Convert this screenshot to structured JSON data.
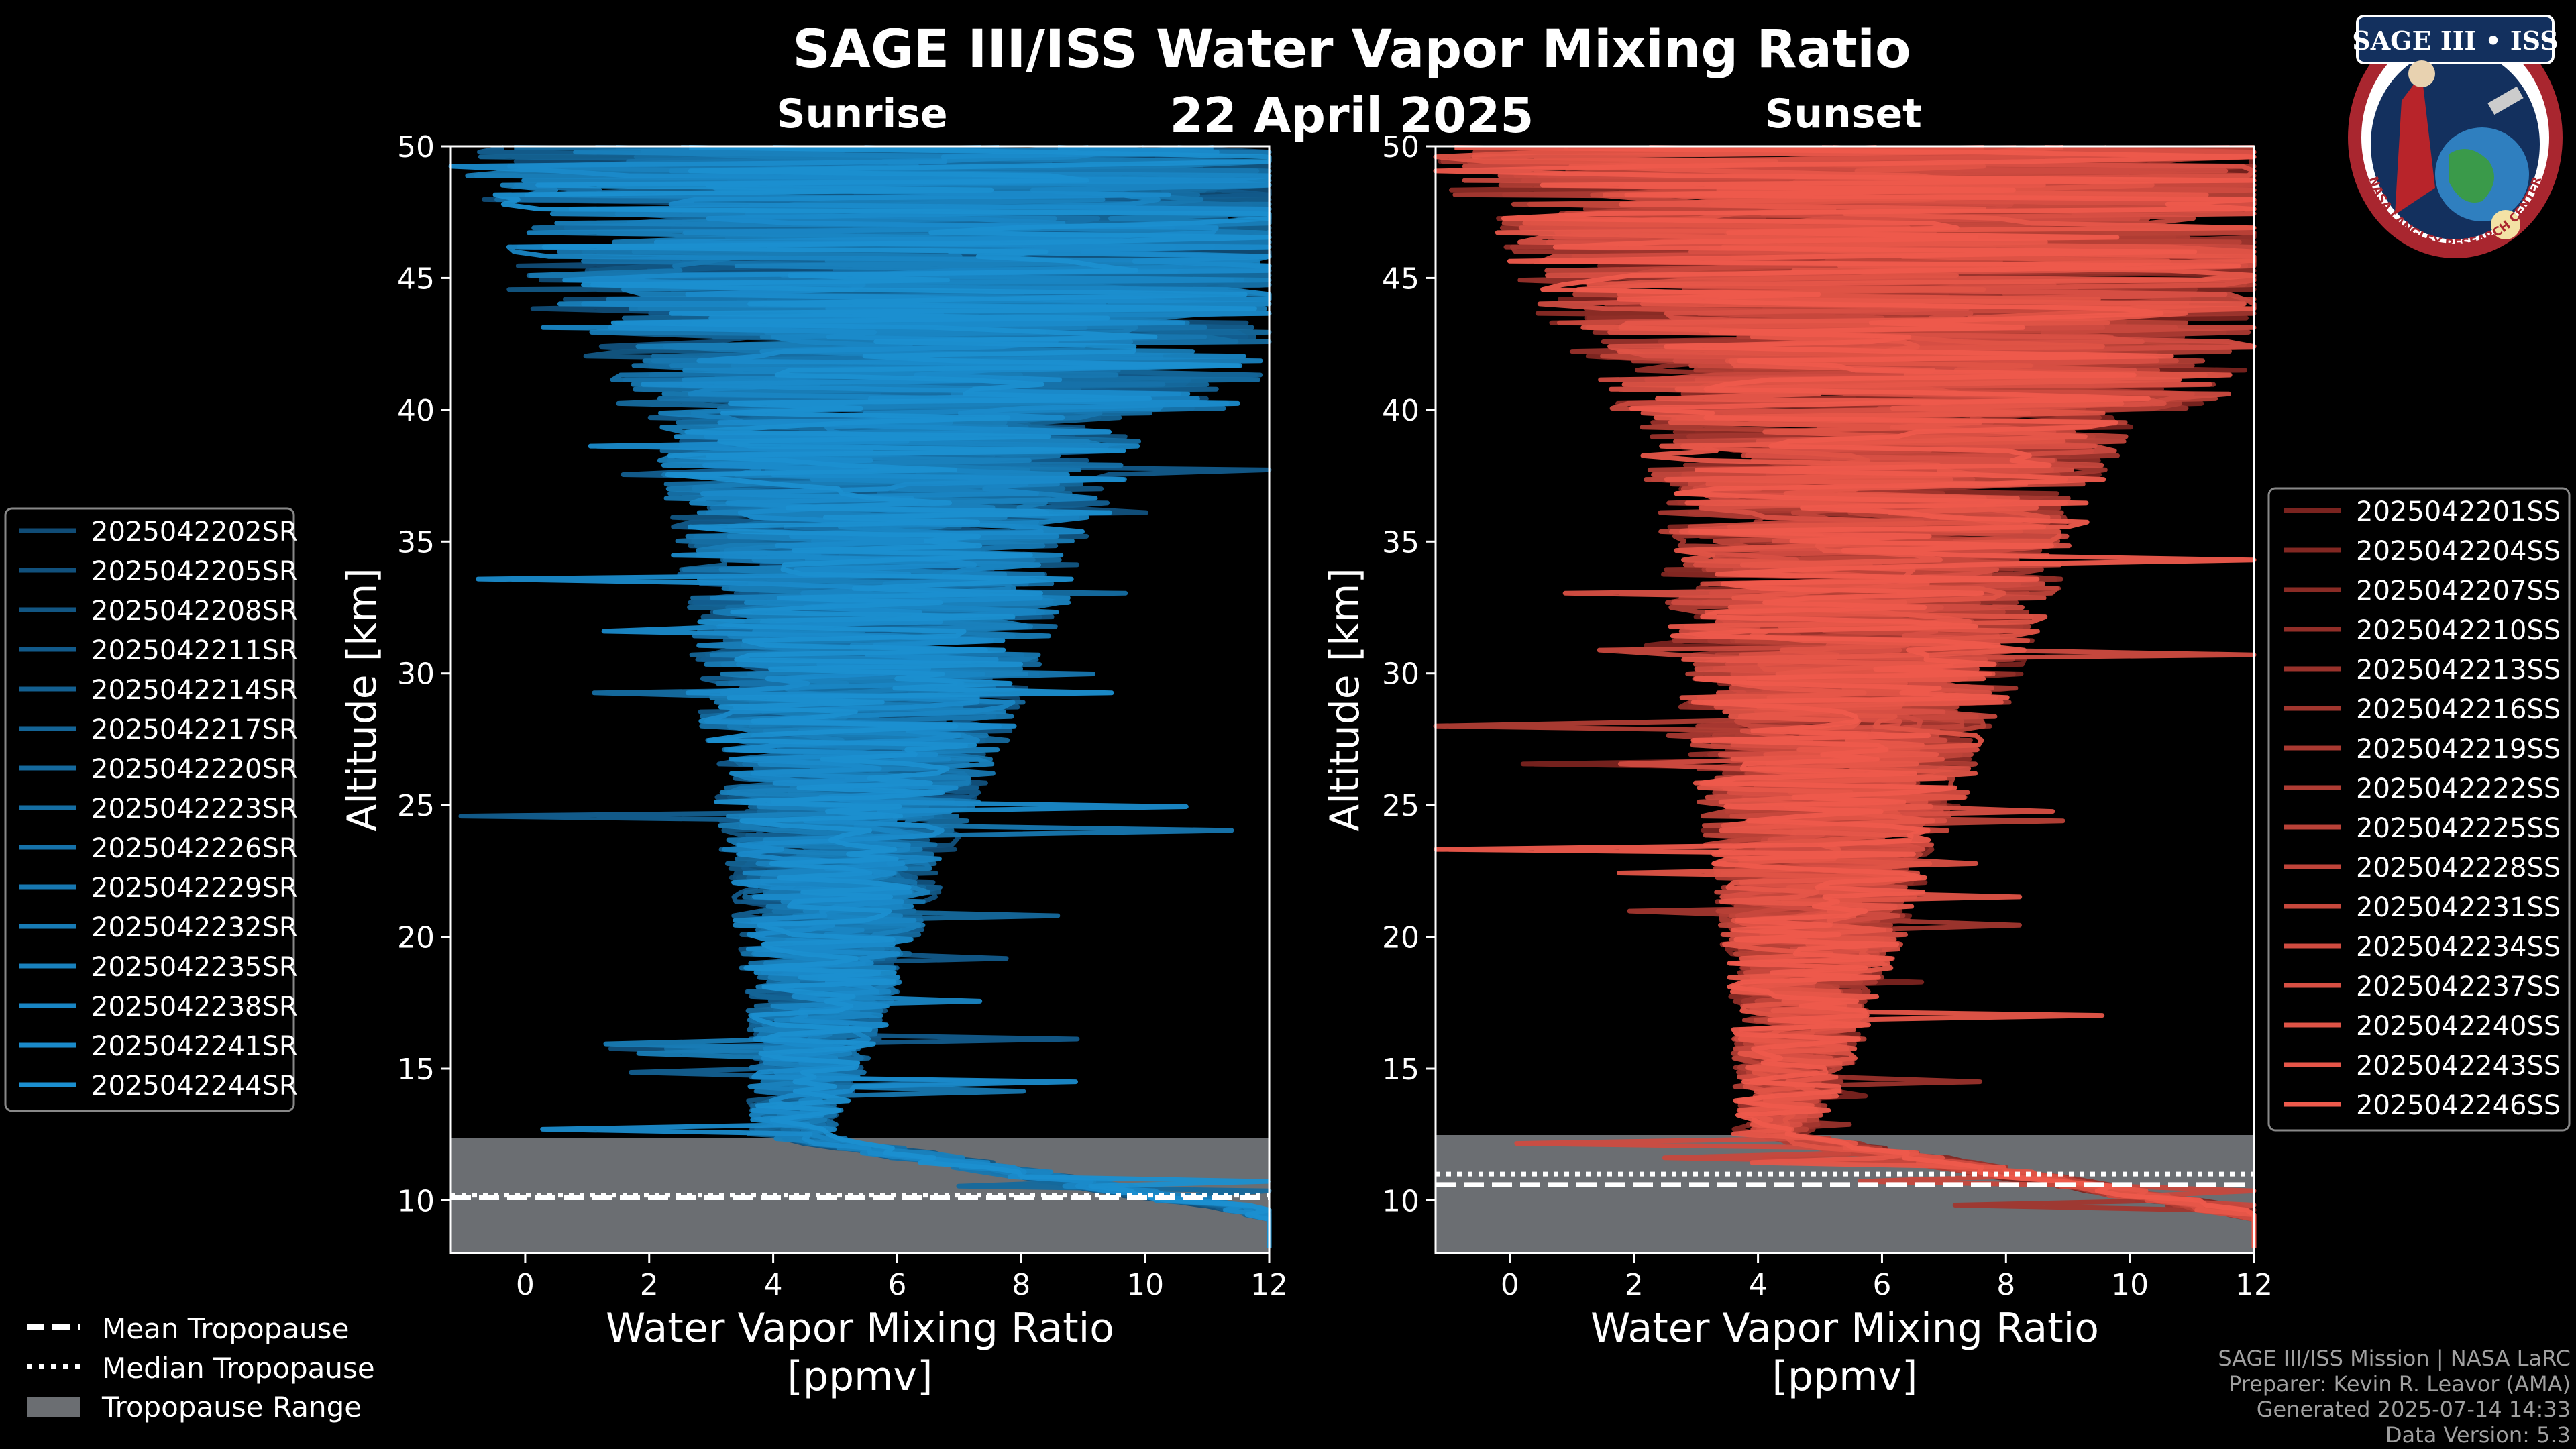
{
  "page": {
    "title": "SAGE III/ISS Water Vapor Mixing Ratio",
    "date": "22 April 2025"
  },
  "colors": {
    "background": "#000000",
    "sunrise_base": "#1b8fd0",
    "sunset_base": "#ee5a4c",
    "tropopause_range": "#6b6e72"
  },
  "chart_data": [
    {
      "type": "line",
      "panel": "Sunrise",
      "title": "Sunrise",
      "xlabel": "Water Vapor Mixing Ratio",
      "xlabel_units": "[ppmv]",
      "ylabel": "Altitude [km]",
      "xlim": [
        -1.2,
        12
      ],
      "ylim": [
        8,
        50
      ],
      "x_ticks": [
        0,
        2,
        4,
        6,
        8,
        10,
        12
      ],
      "y_ticks": [
        10,
        15,
        20,
        25,
        30,
        35,
        40,
        45,
        50
      ],
      "grid": false,
      "legend_position": "left",
      "series": [
        {
          "name": "2025042202SR"
        },
        {
          "name": "2025042205SR"
        },
        {
          "name": "2025042208SR"
        },
        {
          "name": "2025042211SR"
        },
        {
          "name": "2025042214SR"
        },
        {
          "name": "2025042217SR"
        },
        {
          "name": "2025042220SR"
        },
        {
          "name": "2025042223SR"
        },
        {
          "name": "2025042226SR"
        },
        {
          "name": "2025042229SR"
        },
        {
          "name": "2025042232SR"
        },
        {
          "name": "2025042235SR"
        },
        {
          "name": "2025042238SR"
        },
        {
          "name": "2025042241SR"
        },
        {
          "name": "2025042244SR"
        }
      ],
      "tropopause": {
        "mean": 10.1,
        "median": 10.2,
        "range": [
          8,
          12.3
        ]
      }
    },
    {
      "type": "line",
      "panel": "Sunset",
      "title": "Sunset",
      "xlabel": "Water Vapor Mixing Ratio",
      "xlabel_units": "[ppmv]",
      "ylabel": "Altitude [km]",
      "xlim": [
        -1.2,
        12
      ],
      "ylim": [
        8,
        50
      ],
      "x_ticks": [
        0,
        2,
        4,
        6,
        8,
        10,
        12
      ],
      "y_ticks": [
        10,
        15,
        20,
        25,
        30,
        35,
        40,
        45,
        50
      ],
      "grid": false,
      "legend_position": "right",
      "series": [
        {
          "name": "2025042201SS"
        },
        {
          "name": "2025042204SS"
        },
        {
          "name": "2025042207SS"
        },
        {
          "name": "2025042210SS"
        },
        {
          "name": "2025042213SS"
        },
        {
          "name": "2025042216SS"
        },
        {
          "name": "2025042219SS"
        },
        {
          "name": "2025042222SS"
        },
        {
          "name": "2025042225SS"
        },
        {
          "name": "2025042228SS"
        },
        {
          "name": "2025042231SS"
        },
        {
          "name": "2025042234SS"
        },
        {
          "name": "2025042237SS"
        },
        {
          "name": "2025042240SS"
        },
        {
          "name": "2025042243SS"
        },
        {
          "name": "2025042246SS"
        }
      ],
      "tropopause": {
        "mean": 10.6,
        "median": 11.0,
        "range": [
          8,
          12.4
        ]
      }
    }
  ],
  "tropopause_legend": [
    {
      "label": "Mean Tropopause",
      "style": "dashed"
    },
    {
      "label": "Median Tropopause",
      "style": "dotted"
    },
    {
      "label": "Tropopause Range",
      "style": "patch"
    }
  ],
  "footer": {
    "line1": "SAGE III/ISS Mission | NASA LaRC",
    "line2": "Preparer: Kevin R. Leavor (AMA)",
    "line3": "Generated 2025-07-14 14:33",
    "line4": "Data Version: 5.3"
  },
  "logo": {
    "text_top": "SAGE III • ISS",
    "text_bottom": "NASA LANGLEY RESEARCH CENTER"
  }
}
